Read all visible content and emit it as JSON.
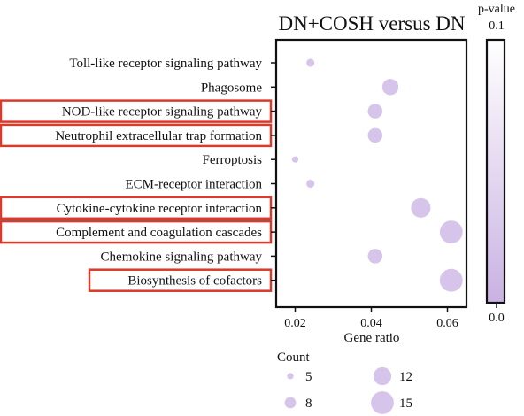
{
  "chart_data": {
    "type": "scatter",
    "title": "DN+COSH versus DN",
    "xlabel": "Gene ratio",
    "ylabel": "",
    "xlim": [
      0.015,
      0.065
    ],
    "xticks": [
      "0.02",
      "0.04",
      "0.06"
    ],
    "xtick_values": [
      0.02,
      0.04,
      0.06
    ],
    "categories": [
      "Toll-like receptor signaling pathway",
      "Phagosome",
      "NOD-like receptor signaling pathway",
      "Neutrophil extracellular trap formation",
      "Ferroptosis",
      "ECM-receptor interaction",
      "Cytokine-cytokine receptor interaction",
      "Complement and coagulation cascades",
      "Chemokine signaling pathway",
      "Biosynthesis of cofactors"
    ],
    "highlighted": [
      false,
      false,
      true,
      true,
      false,
      false,
      true,
      true,
      false,
      true
    ],
    "points": [
      {
        "pathway": "Toll-like receptor signaling pathway",
        "gene_ratio": 0.024,
        "count": 6
      },
      {
        "pathway": "Phagosome",
        "gene_ratio": 0.045,
        "count": 11
      },
      {
        "pathway": "NOD-like receptor signaling pathway",
        "gene_ratio": 0.041,
        "count": 10
      },
      {
        "pathway": "Neutrophil extracellular trap formation",
        "gene_ratio": 0.041,
        "count": 10
      },
      {
        "pathway": "Ferroptosis",
        "gene_ratio": 0.02,
        "count": 5
      },
      {
        "pathway": "ECM-receptor interaction",
        "gene_ratio": 0.024,
        "count": 6
      },
      {
        "pathway": "Cytokine-cytokine receptor interaction",
        "gene_ratio": 0.053,
        "count": 13
      },
      {
        "pathway": "Complement and coagulation cascades",
        "gene_ratio": 0.061,
        "count": 15
      },
      {
        "pathway": "Chemokine signaling pathway",
        "gene_ratio": 0.041,
        "count": 10
      },
      {
        "pathway": "Biosynthesis of cofactors",
        "gene_ratio": 0.061,
        "count": 15
      }
    ],
    "point_color": "#d6c4ea",
    "highlight_color": "#d93a2b",
    "colorbar": {
      "title": "p-value",
      "max_label": "0.1",
      "min_label": "0.0",
      "color_low": "#c9b2e2",
      "color_high": "#ffffff"
    },
    "size_legend": {
      "title": "Count",
      "entries": [
        {
          "label": "5",
          "count": 5
        },
        {
          "label": "8",
          "count": 8
        },
        {
          "label": "12",
          "count": 12
        },
        {
          "label": "15",
          "count": 15
        }
      ]
    }
  }
}
